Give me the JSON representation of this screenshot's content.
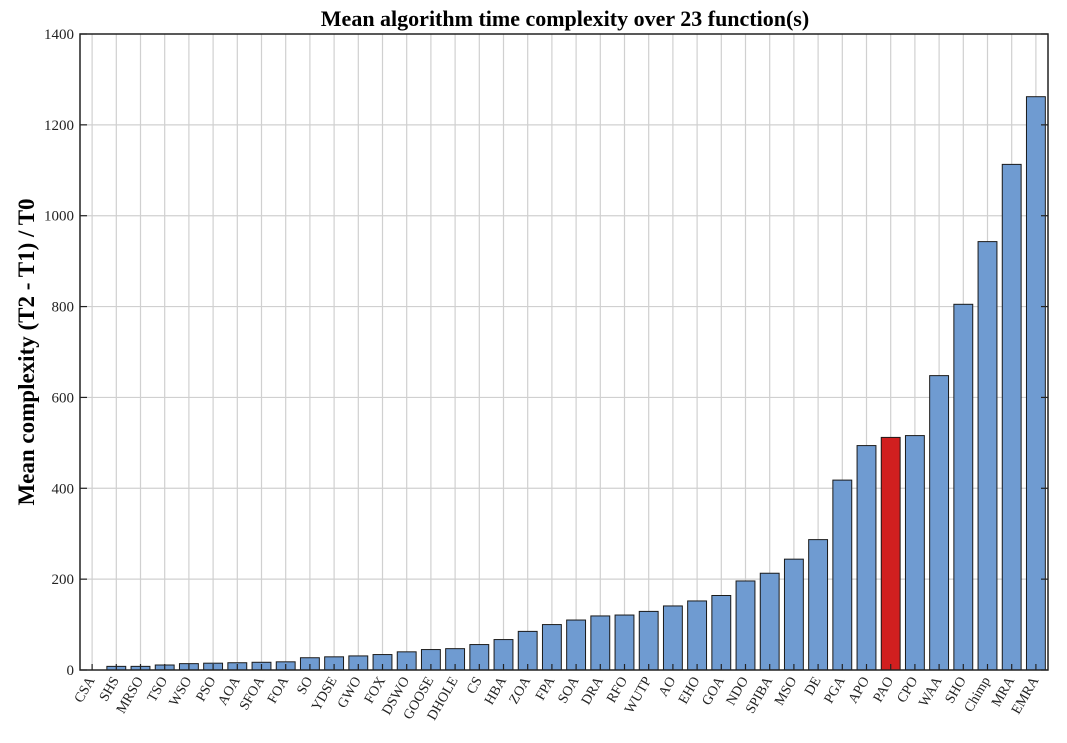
{
  "chart_data": {
    "type": "bar",
    "title": "Mean algorithm time complexity over 23 function(s)",
    "xlabel": "",
    "ylabel": "Mean complexity  (T2 - T1) / T0",
    "ylim": [
      0,
      1400
    ],
    "yticks": [
      0,
      200,
      400,
      600,
      800,
      1000,
      1200,
      1400
    ],
    "grid": true,
    "bar_color": "#6f9bd1",
    "highlight_color": "#d11f1f",
    "highlight_category": "PAO",
    "categories": [
      "CSA",
      "SHS",
      "MRSO",
      "TSO",
      "WSO",
      "PSO",
      "AOA",
      "SFOA",
      "FOA",
      "SO",
      "YDSE",
      "GWO",
      "FOX",
      "DSWO",
      "GOOSE",
      "DHOLE",
      "CS",
      "HBA",
      "ZOA",
      "FPA",
      "SOA",
      "DRA",
      "RFO",
      "WUTP",
      "AO",
      "EHO",
      "GOA",
      "NDO",
      "SPIBA",
      "MSO",
      "DE",
      "PGA",
      "APO",
      "PAO",
      "CPO",
      "WAA",
      "SHO",
      "Chimp",
      "MRA",
      "EMRA"
    ],
    "values": [
      0,
      8,
      8,
      11,
      14,
      15,
      16,
      17,
      18,
      27,
      29,
      31,
      34,
      40,
      45,
      47,
      56,
      67,
      85,
      100,
      110,
      119,
      121,
      129,
      141,
      152,
      164,
      196,
      213,
      244,
      287,
      418,
      494,
      512,
      516,
      648,
      805,
      943,
      1113,
      1262
    ]
  }
}
